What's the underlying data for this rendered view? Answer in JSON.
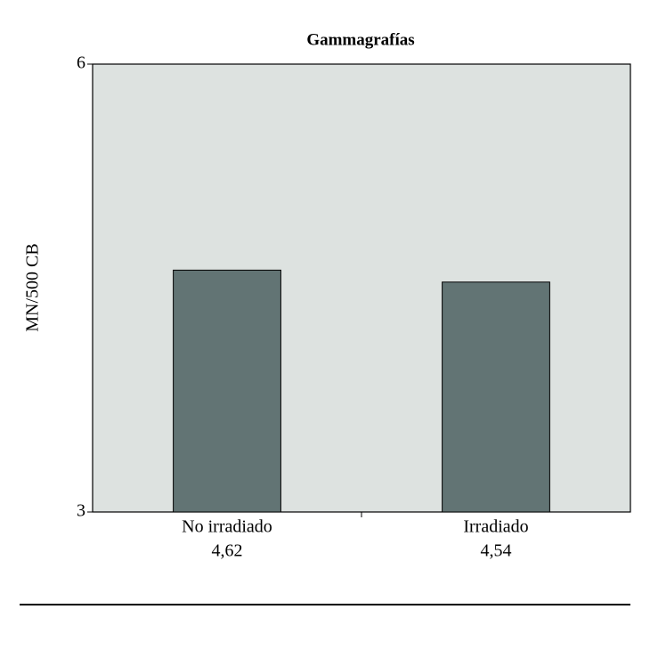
{
  "chart_data": {
    "type": "bar",
    "title": "Gammagrafías",
    "y_label": "MN/500 CB",
    "categories": [
      "No irradiado",
      "Irradiado"
    ],
    "values": [
      4.62,
      4.54
    ],
    "value_labels": [
      "4,62",
      "4,54"
    ],
    "color": "#627474",
    "background": "#dde2e0",
    "ylim": [
      3,
      6
    ],
    "yticks": [
      3,
      6
    ],
    "grid": false
  }
}
